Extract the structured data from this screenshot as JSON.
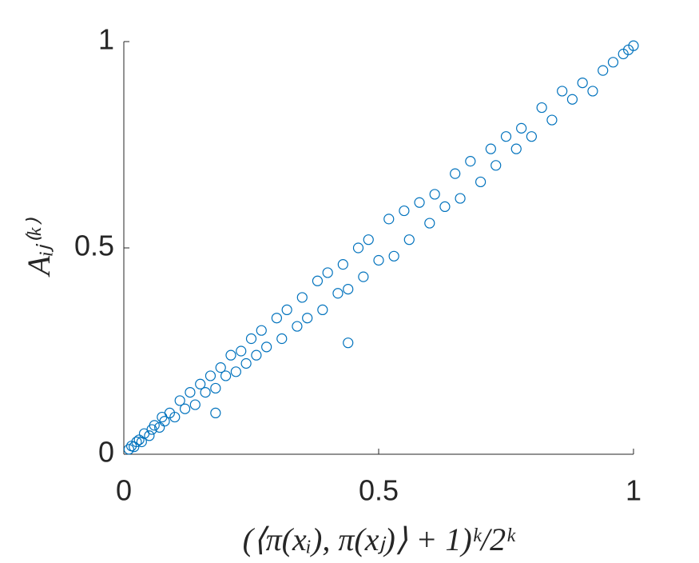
{
  "chart_data": {
    "type": "scatter",
    "x_label": "(⟨π(xᵢ), π(xⱼ)⟩ + 1)ᵏ/2ᵏ",
    "y_label": "Aᵢⱼ⁽ᵏ⁾",
    "xlim": [
      0,
      1
    ],
    "ylim": [
      0,
      1
    ],
    "xticks": [
      0,
      0.5,
      1
    ],
    "yticks": [
      0,
      0.5,
      1
    ],
    "series": [
      {
        "color": "#0072BD",
        "x": [
          0.01,
          0.015,
          0.02,
          0.025,
          0.03,
          0.035,
          0.04,
          0.05,
          0.055,
          0.06,
          0.07,
          0.075,
          0.08,
          0.09,
          0.1,
          0.11,
          0.12,
          0.13,
          0.14,
          0.15,
          0.16,
          0.17,
          0.18,
          0.19,
          0.2,
          0.21,
          0.22,
          0.23,
          0.24,
          0.25,
          0.26,
          0.27,
          0.28,
          0.3,
          0.31,
          0.32,
          0.34,
          0.35,
          0.36,
          0.38,
          0.39,
          0.4,
          0.42,
          0.43,
          0.44,
          0.46,
          0.47,
          0.48,
          0.5,
          0.52,
          0.53,
          0.55,
          0.56,
          0.58,
          0.6,
          0.61,
          0.63,
          0.65,
          0.66,
          0.68,
          0.7,
          0.72,
          0.73,
          0.75,
          0.77,
          0.78,
          0.8,
          0.82,
          0.84,
          0.86,
          0.88,
          0.9,
          0.92,
          0.94,
          0.96,
          0.98,
          0.99,
          1.0,
          0.44,
          0.18
        ],
        "values": [
          0.012,
          0.02,
          0.018,
          0.03,
          0.035,
          0.03,
          0.05,
          0.045,
          0.06,
          0.07,
          0.065,
          0.09,
          0.08,
          0.1,
          0.09,
          0.13,
          0.11,
          0.15,
          0.12,
          0.17,
          0.15,
          0.19,
          0.16,
          0.21,
          0.19,
          0.24,
          0.2,
          0.25,
          0.22,
          0.28,
          0.24,
          0.3,
          0.26,
          0.33,
          0.28,
          0.35,
          0.31,
          0.38,
          0.33,
          0.42,
          0.35,
          0.44,
          0.39,
          0.46,
          0.4,
          0.5,
          0.43,
          0.52,
          0.47,
          0.57,
          0.48,
          0.59,
          0.52,
          0.61,
          0.56,
          0.63,
          0.6,
          0.68,
          0.62,
          0.71,
          0.66,
          0.74,
          0.7,
          0.77,
          0.74,
          0.79,
          0.77,
          0.84,
          0.81,
          0.88,
          0.86,
          0.9,
          0.88,
          0.93,
          0.95,
          0.97,
          0.98,
          0.99,
          0.27,
          0.1
        ]
      }
    ]
  }
}
